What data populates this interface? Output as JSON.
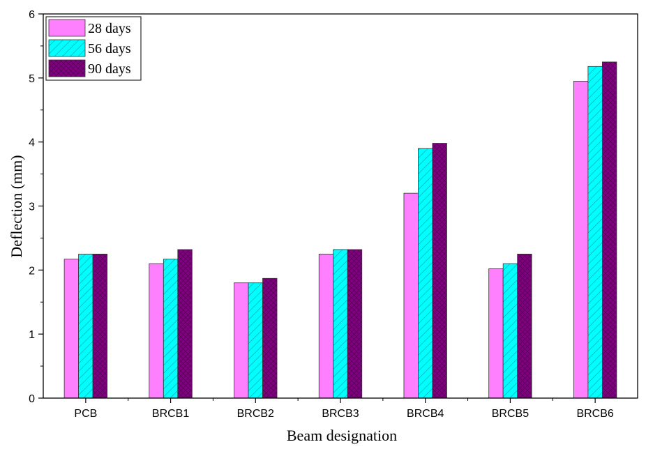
{
  "chart_data": {
    "type": "bar",
    "xlabel": "Beam designation",
    "ylabel": "Deflection (mm)",
    "ylim": [
      0,
      6
    ],
    "yticks": [
      "0",
      "1",
      "2",
      "3",
      "4",
      "5",
      "6"
    ],
    "categories": [
      "PCB",
      "BRCB1",
      "BRCB2",
      "BRCB3",
      "BRCB4",
      "BRCB5",
      "BRCB6"
    ],
    "series": [
      {
        "name": "28 days",
        "values": [
          2.17,
          2.1,
          1.8,
          2.25,
          3.2,
          2.02,
          4.95
        ],
        "color": "#ff80ff",
        "pattern": "none"
      },
      {
        "name": "56 days",
        "values": [
          2.25,
          2.17,
          1.8,
          2.32,
          3.9,
          2.1,
          5.18
        ],
        "color": "#00ffff",
        "pattern": "diagonal-hatch"
      },
      {
        "name": "90 days",
        "values": [
          2.25,
          2.32,
          1.87,
          2.32,
          3.98,
          2.25,
          5.25
        ],
        "color": "#800080",
        "pattern": "crosshatch"
      }
    ],
    "legend_position": "top-left",
    "grid": false
  }
}
